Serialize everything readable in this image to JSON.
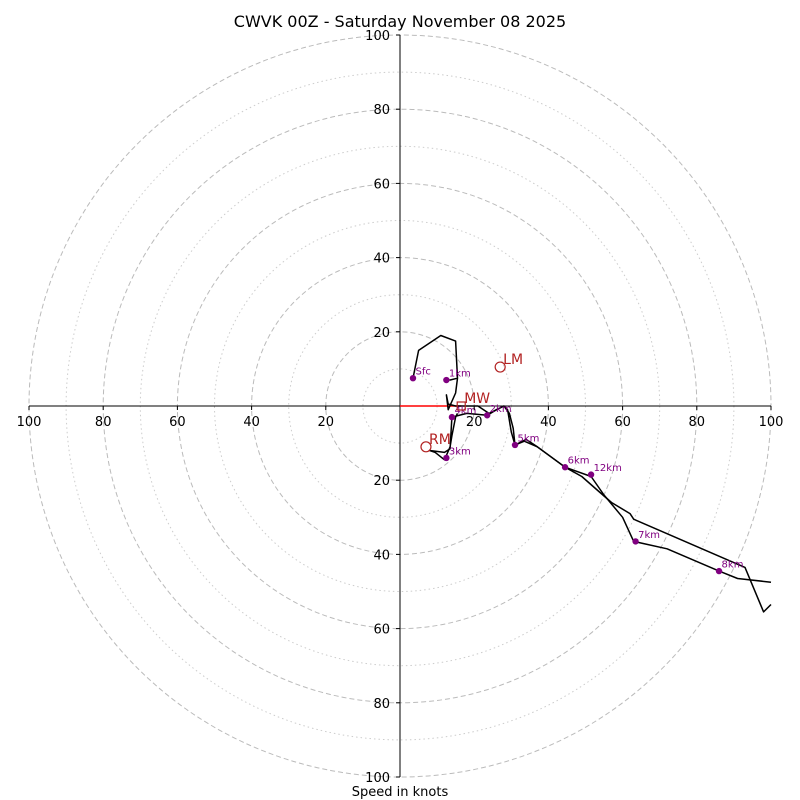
{
  "chart_data": {
    "type": "hodograph",
    "title": "CWVK 00Z - Saturday November 08 2025",
    "xlabel": "Speed in knots",
    "ylim": [
      -100,
      100
    ],
    "xlim": [
      -100,
      100
    ],
    "x_ticks": [
      {
        "value": -100,
        "label": "100"
      },
      {
        "value": -80,
        "label": "80"
      },
      {
        "value": -60,
        "label": "60"
      },
      {
        "value": -40,
        "label": "40"
      },
      {
        "value": -20,
        "label": "20"
      },
      {
        "value": 20,
        "label": "20"
      },
      {
        "value": 40,
        "label": "40"
      },
      {
        "value": 60,
        "label": "60"
      },
      {
        "value": 80,
        "label": "80"
      },
      {
        "value": 100,
        "label": "100"
      }
    ],
    "y_ticks": [
      {
        "value": 100,
        "label": "100"
      },
      {
        "value": 80,
        "label": "80"
      },
      {
        "value": 60,
        "label": "60"
      },
      {
        "value": 40,
        "label": "40"
      },
      {
        "value": 20,
        "label": "20"
      },
      {
        "value": -20,
        "label": "20"
      },
      {
        "value": -40,
        "label": "40"
      },
      {
        "value": -60,
        "label": "60"
      },
      {
        "value": -80,
        "label": "80"
      },
      {
        "value": -100,
        "label": "100"
      }
    ],
    "rings_dashed": [
      20,
      40,
      60,
      80,
      100
    ],
    "rings_dotted": [
      10,
      30,
      50,
      70,
      90
    ],
    "colors": {
      "trace": "#000000",
      "height_marker": "#800080",
      "motion": "#b22222",
      "mean_wind_line": "#ff0000",
      "ring": "#bbbbbb"
    },
    "trace": [
      [
        3.5,
        7.5
      ],
      [
        5,
        15
      ],
      [
        11,
        19
      ],
      [
        15,
        17.5
      ],
      [
        15.5,
        7.5
      ],
      [
        13.5,
        7
      ],
      [
        15.5,
        7.5
      ],
      [
        15,
        3.5
      ],
      [
        13,
        -1
      ],
      [
        12.5,
        3
      ],
      [
        13,
        0.5
      ],
      [
        15,
        0
      ],
      [
        21,
        0
      ],
      [
        24,
        -2
      ],
      [
        28,
        0
      ],
      [
        29.5,
        -2
      ],
      [
        30.5,
        -6
      ],
      [
        31,
        -10.5
      ],
      [
        34,
        -9
      ],
      [
        37,
        -11
      ],
      [
        44.5,
        -16.5
      ],
      [
        51.5,
        -19
      ],
      [
        55,
        -24
      ],
      [
        60,
        -30
      ],
      [
        63,
        -36.5
      ],
      [
        72,
        -38.5
      ],
      [
        86,
        -44.5
      ],
      [
        91,
        -46.5
      ],
      [
        100,
        -47.5
      ]
    ],
    "trace2": [
      [
        15.5,
        -2
      ],
      [
        15,
        -3
      ],
      [
        14,
        -8
      ],
      [
        13.5,
        -11
      ],
      [
        12,
        -14.5
      ],
      [
        9.5,
        -12.5
      ],
      [
        8,
        -12
      ],
      [
        12,
        -12.5
      ],
      [
        13.5,
        -11.5
      ],
      [
        14,
        -3
      ],
      [
        18,
        -2
      ],
      [
        23.5,
        -2.5
      ],
      [
        26,
        -1
      ],
      [
        28,
        0
      ],
      [
        29,
        -1
      ],
      [
        30,
        -7
      ],
      [
        31,
        -10.5
      ],
      [
        33.5,
        -9.5
      ],
      [
        37,
        -11
      ],
      [
        44.5,
        -16.5
      ],
      [
        49,
        -19
      ],
      [
        53,
        -22.5
      ],
      [
        57,
        -26
      ],
      [
        62,
        -29
      ],
      [
        63,
        -30.5
      ],
      [
        93,
        -43.5
      ],
      [
        98,
        -55.5
      ],
      [
        100,
        -53.5
      ]
    ],
    "height_points": [
      {
        "label": "Sfc",
        "u": 3.5,
        "v": 7.5
      },
      {
        "label": "1km",
        "u": 12.5,
        "v": 7
      },
      {
        "label": "2km",
        "u": 23.5,
        "v": -2.5
      },
      {
        "label": "3km",
        "u": 12.5,
        "v": -14
      },
      {
        "label": "4km",
        "u": 14,
        "v": -3
      },
      {
        "label": "5km",
        "u": 31,
        "v": -10.5
      },
      {
        "label": "6km",
        "u": 44.5,
        "v": -16.5
      },
      {
        "label": "7km",
        "u": 63.5,
        "v": -36.5
      },
      {
        "label": "8km",
        "u": 86,
        "v": -44.5
      },
      {
        "label": "12km",
        "u": 51.5,
        "v": -18.5
      }
    ],
    "storm_motions": [
      {
        "label": "LM",
        "u": 27,
        "v": 10.5
      },
      {
        "label": "RM",
        "u": 7,
        "v": -11
      },
      {
        "label": "MW",
        "u": 16.5,
        "v": 0
      }
    ]
  }
}
